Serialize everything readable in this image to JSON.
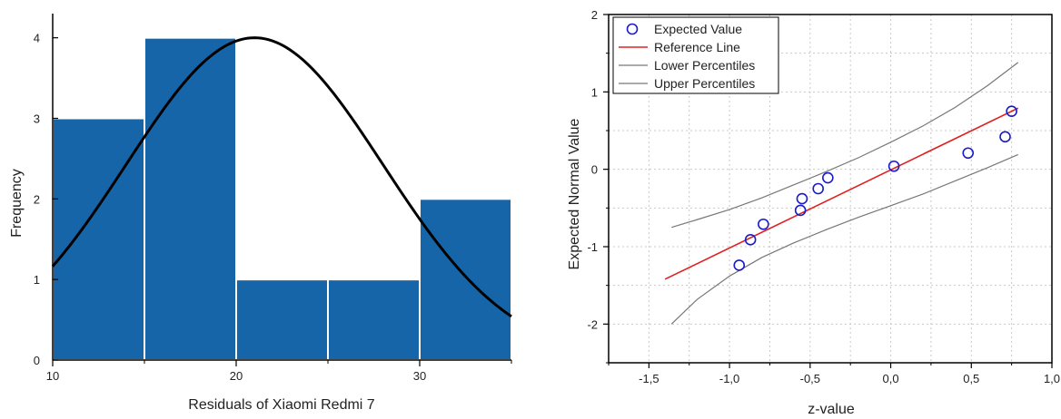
{
  "chart_data": [
    {
      "type": "bar",
      "subtype": "histogram-with-normal-curve",
      "title": "",
      "xlabel": "Residuals of Xiaomi Redmi 7",
      "ylabel": "Frequency",
      "xlim": [
        10,
        35
      ],
      "ylim": [
        0,
        4.3
      ],
      "xticks": [
        10,
        20,
        30
      ],
      "yticks": [
        0,
        1,
        2,
        3,
        4
      ],
      "bins": [
        {
          "start": 10,
          "end": 15,
          "count": 3
        },
        {
          "start": 15,
          "end": 20,
          "count": 4
        },
        {
          "start": 20,
          "end": 25,
          "count": 1
        },
        {
          "start": 25,
          "end": 30,
          "count": 1
        },
        {
          "start": 30,
          "end": 35,
          "count": 2
        }
      ],
      "normal_curve": {
        "mean": 21.0,
        "sd": 7.0,
        "peak": 4.0
      },
      "bar_color": "#1565a8",
      "curve_color": "#000000",
      "grid": false
    },
    {
      "type": "scatter",
      "subtype": "q-q-plot",
      "title": "",
      "xlabel": "z-value",
      "ylabel": "Expected Normal Value",
      "xlim": [
        -1.75,
        1.0
      ],
      "ylim": [
        -2.5,
        2.0
      ],
      "xticks": [
        "-1,5",
        "-1,0",
        "-0,5",
        "0,0",
        "0,5",
        "1,0"
      ],
      "xtick_values": [
        -1.5,
        -1.0,
        -0.5,
        0.0,
        0.5,
        1.0
      ],
      "yticks": [
        -2,
        -1,
        0,
        1,
        2
      ],
      "grid": true,
      "legend_position": "top-left",
      "series": [
        {
          "name": "Expected Value",
          "kind": "points",
          "color": "#1a1acc",
          "x": [
            -0.94,
            -0.87,
            -0.79,
            -0.56,
            -0.55,
            -0.45,
            -0.39,
            0.02,
            0.48,
            0.71,
            0.75
          ],
          "y": [
            -1.24,
            -0.91,
            -0.71,
            -0.53,
            -0.38,
            -0.25,
            -0.11,
            0.04,
            0.21,
            0.42,
            0.75
          ]
        },
        {
          "name": "Reference Line",
          "kind": "line",
          "color": "#e02020",
          "x": [
            -1.4,
            0.79
          ],
          "y": [
            -1.42,
            0.79
          ]
        },
        {
          "name": "Lower Percentiles",
          "kind": "line",
          "color": "#777777",
          "x": [
            -1.36,
            -1.2,
            -1.0,
            -0.8,
            -0.6,
            -0.4,
            -0.2,
            0.0,
            0.2,
            0.4,
            0.6,
            0.79
          ],
          "y": [
            -2.0,
            -1.68,
            -1.38,
            -1.14,
            -0.95,
            -0.78,
            -0.62,
            -0.47,
            -0.32,
            -0.15,
            0.02,
            0.19
          ]
        },
        {
          "name": "Upper Percentiles",
          "kind": "line",
          "color": "#777777",
          "x": [
            -1.36,
            -1.2,
            -1.0,
            -0.8,
            -0.6,
            -0.4,
            -0.2,
            0.0,
            0.2,
            0.4,
            0.6,
            0.79
          ],
          "y": [
            -0.75,
            -0.65,
            -0.52,
            -0.37,
            -0.2,
            -0.03,
            0.15,
            0.35,
            0.56,
            0.8,
            1.08,
            1.38
          ]
        }
      ]
    }
  ]
}
